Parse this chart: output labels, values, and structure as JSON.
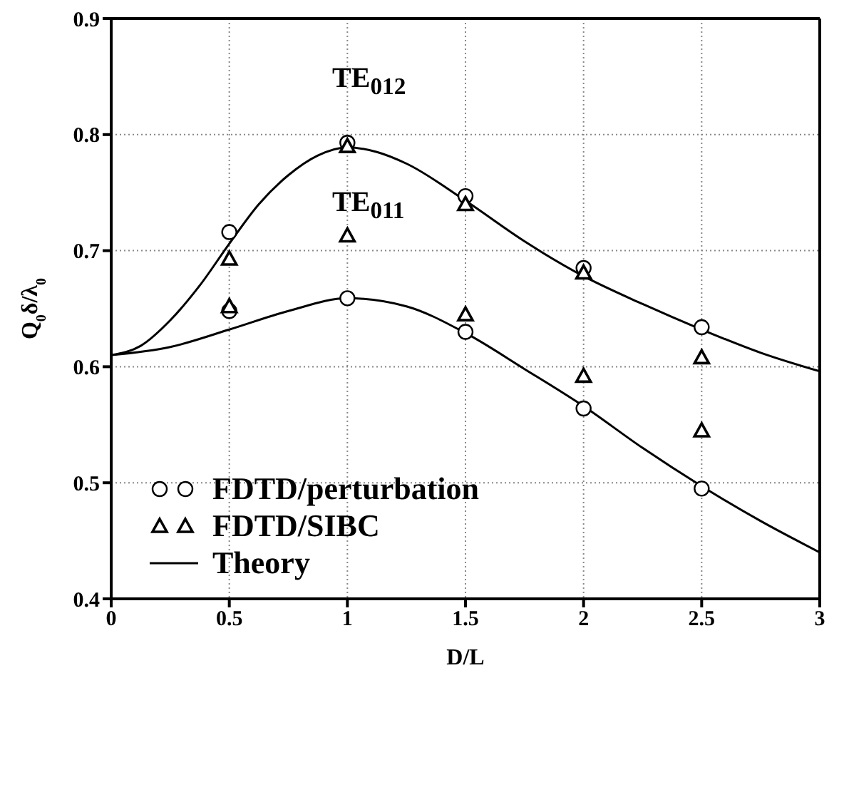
{
  "chart_data": {
    "type": "scatter",
    "xlabel": "D/L",
    "ylabel": "Q$_{0}$δ/λ$_{0}$",
    "xlim": [
      0,
      3
    ],
    "xticks": [
      0,
      0.5,
      1,
      1.5,
      2,
      2.5,
      3
    ],
    "ylim": [
      0.4,
      0.9
    ],
    "yticks": [
      0.4,
      0.5,
      0.6,
      0.7,
      0.8,
      0.9
    ],
    "grid": true,
    "legend": "bottom left",
    "annotations": [
      "TE$_{012}$",
      "TE$_{011}$"
    ],
    "series": [
      {
        "name": "FDTD/perturbation",
        "marker": "circle",
        "color": "#000000",
        "x": [
          0.5,
          0.5,
          1,
          1,
          1.5,
          1.5,
          2,
          2,
          2.5,
          2.5
        ],
        "values": [
          0.716,
          0.648,
          0.793,
          0.659,
          0.747,
          0.63,
          0.685,
          0.564,
          0.634,
          0.495
        ]
      },
      {
        "name": "FDTD/SIBC",
        "marker": "triangle",
        "color": "#000000",
        "x": [
          0.5,
          0.5,
          1,
          1,
          1.5,
          1.5,
          2,
          2,
          2.5,
          2.5
        ],
        "values": [
          0.693,
          0.652,
          0.79,
          0.713,
          0.74,
          0.645,
          0.681,
          0.592,
          0.608,
          0.545
        ]
      },
      {
        "name": "Theory",
        "type": "line",
        "marker": "none",
        "line_style": "solid",
        "color": "#000000",
        "x": [
          0,
          0.125,
          0.25,
          0.375,
          0.5,
          0.625,
          0.75,
          0.875,
          1,
          1.125,
          1.25,
          1.5,
          1.75,
          2,
          2.25,
          2.5,
          2.75,
          3
        ],
        "values": [
          0.61,
          0.618,
          0.64,
          0.67,
          0.706,
          0.74,
          0.765,
          0.782,
          0.789,
          0.785,
          0.775,
          0.743,
          0.708,
          0.678,
          0.654,
          0.632,
          0.612,
          0.596
        ]
      },
      {
        "type": "line",
        "marker": "none",
        "line_style": "solid",
        "color": "#000000",
        "x": [
          0,
          0.25,
          0.5,
          0.75,
          1,
          1.25,
          1.5,
          1.75,
          2,
          2.25,
          2.5,
          2.75,
          3
        ],
        "values": [
          0.61,
          0.617,
          0.632,
          0.648,
          0.659,
          0.652,
          0.629,
          0.598,
          0.566,
          0.53,
          0.497,
          0.467,
          0.44
        ]
      }
    ]
  }
}
